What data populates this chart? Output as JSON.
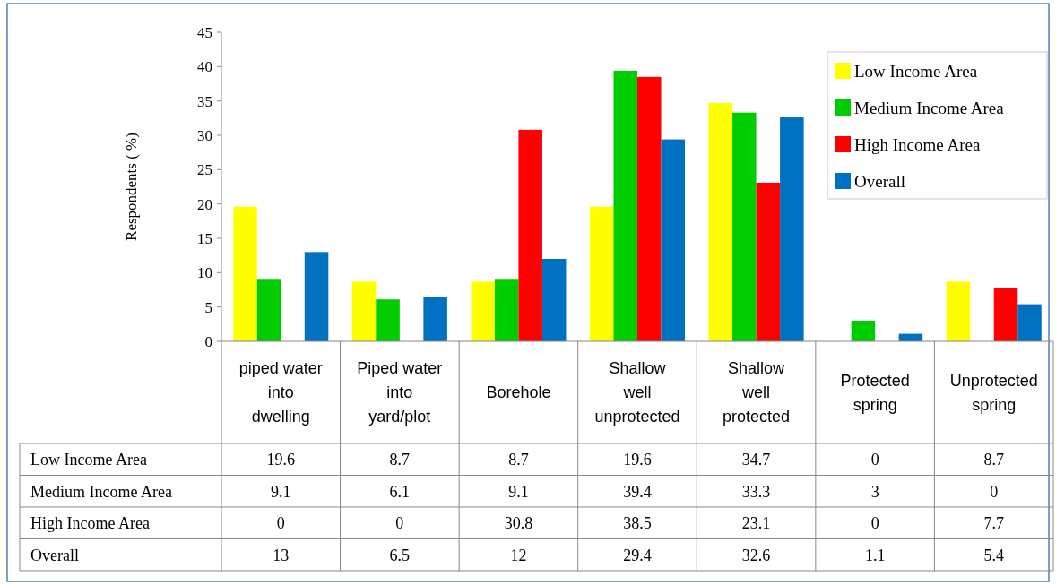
{
  "chart_data": {
    "type": "bar",
    "ylabel": "Respondents ( %)",
    "categories": [
      "piped water into dwelling",
      "Piped water into yard/plot",
      "Borehole",
      "Shallow well unprotected",
      "Shallow well protected",
      "Protected spring",
      "Unprotected spring"
    ],
    "series": [
      {
        "name": "Low Income Area",
        "color": "#ffff00",
        "values": [
          19.6,
          8.7,
          8.7,
          19.6,
          34.7,
          0,
          8.7
        ]
      },
      {
        "name": "Medium Income Area",
        "color": "#00cc00",
        "values": [
          9.1,
          6.1,
          9.1,
          39.4,
          33.3,
          3,
          0
        ]
      },
      {
        "name": "High Income Area",
        "color": "#ff0000",
        "values": [
          0,
          0,
          30.8,
          38.5,
          23.1,
          0,
          7.7
        ]
      },
      {
        "name": "Overall",
        "color": "#0070c0",
        "values": [
          13,
          6.5,
          12,
          29.4,
          32.6,
          1.1,
          5.4
        ]
      }
    ],
    "ylim": [
      0,
      45
    ],
    "yticks": [
      0,
      5,
      10,
      15,
      20,
      25,
      30,
      35,
      40,
      45
    ],
    "grid": false,
    "legend": "top right",
    "data_labels": true
  }
}
